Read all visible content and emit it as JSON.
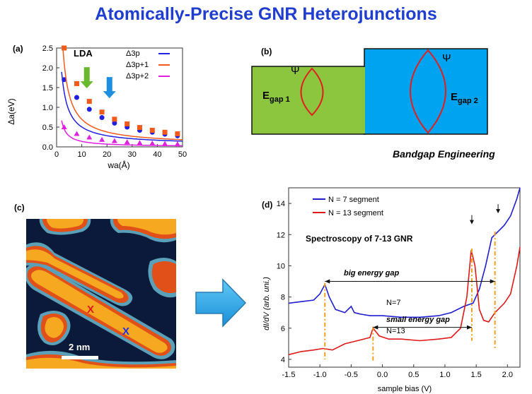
{
  "title": "Atomically-Precise GNR Heterojunctions",
  "panel_a": {
    "label": "(a)",
    "inset_label": "LDA",
    "ylabel": "Δa(eV)",
    "xlabel": "wa(Å)",
    "legend": [
      "Δ3p",
      "Δ3p+1",
      "Δ3p+2"
    ],
    "colors": {
      "3p": "#2020e0",
      "3p1": "#f05a1a",
      "3p2": "#e020e0",
      "green_arrow": "#6ab82e",
      "blue_arrow": "#1e8fe0"
    },
    "xlim": [
      0,
      50
    ],
    "ylim": [
      0,
      2.5
    ],
    "xticks": [
      "0",
      "10",
      "20",
      "30",
      "40",
      "50"
    ],
    "yticks": [
      "0.0",
      "0.5",
      "1.0",
      "1.5",
      "2.0",
      "2.5"
    ],
    "arrows_at_x": [
      12,
      21
    ]
  },
  "panel_b": {
    "label": "(b)",
    "psi": "Ψ",
    "egap1": "E",
    "egap1_sub": "gap 1",
    "egap2": "E",
    "egap2_sub": "gap 2",
    "caption": "Bandgap Engineering",
    "colors": {
      "left": "#8cc63f",
      "right": "#00a3ef",
      "wave": "#e02020"
    }
  },
  "panel_c": {
    "label": "(c)",
    "scale": "2 nm",
    "marker_red": "X",
    "marker_blue": "X"
  },
  "panel_d": {
    "label": "(d)",
    "legend_7": "N = 7 segment",
    "legend_13": "N = 13 segment",
    "title": "Spectroscopy of 7-13 GNR",
    "big_gap": "big energy gap",
    "n7": "N=7",
    "small_gap": "small energy gap",
    "n13": "N=13",
    "ylabel": "dI/dV (arb. uni.)",
    "xlabel": "sample bias (V)",
    "xlim": [
      -1.5,
      2.2
    ],
    "ylim": [
      3.5,
      15
    ],
    "xticks": [
      "-1.5",
      "-1.0",
      "-0.5",
      "0.0",
      "0.5",
      "1.0",
      "1.5",
      "2.0"
    ],
    "yticks": [
      "4",
      "6",
      "8",
      "10",
      "12",
      "14"
    ],
    "colors": {
      "n7": "#1f1fd0",
      "n13": "#e01818",
      "marker": "#f0a020"
    }
  },
  "chart_data": [
    {
      "type": "scatter",
      "title": "",
      "xlabel": "wa(Å)",
      "ylabel": "Δa(eV)",
      "xlim": [
        0,
        50
      ],
      "ylim": [
        0,
        2.5
      ],
      "series": [
        {
          "name": "Δ3p",
          "x": [
            3,
            8,
            13,
            18,
            23,
            28,
            33,
            38,
            43,
            48
          ],
          "y": [
            1.7,
            1.25,
            0.95,
            0.74,
            0.6,
            0.5,
            0.42,
            0.37,
            0.32,
            0.28
          ]
        },
        {
          "name": "Δ3p+1",
          "x": [
            3,
            8,
            13,
            18,
            23,
            28,
            33,
            38,
            43,
            48
          ],
          "y": [
            2.5,
            1.6,
            1.15,
            0.88,
            0.7,
            0.58,
            0.49,
            0.42,
            0.37,
            0.33
          ]
        },
        {
          "name": "Δ3p+2",
          "x": [
            3,
            8,
            13,
            18,
            23,
            28,
            33,
            38,
            43,
            48
          ],
          "y": [
            0.5,
            0.33,
            0.24,
            0.18,
            0.15,
            0.12,
            0.1,
            0.09,
            0.08,
            0.07
          ]
        }
      ]
    },
    {
      "type": "line",
      "title": "Spectroscopy of 7-13 GNR",
      "xlabel": "sample bias (V)",
      "ylabel": "dI/dV (arb. uni.)",
      "xlim": [
        -1.5,
        2.2
      ],
      "ylim": [
        3.5,
        15
      ],
      "series": [
        {
          "name": "N = 7 segment",
          "x": [
            -1.5,
            -1.3,
            -1.1,
            -1.0,
            -0.92,
            -0.85,
            -0.75,
            -0.6,
            -0.5,
            -0.45,
            -0.35,
            -0.2,
            0.0,
            0.3,
            0.6,
            0.9,
            1.1,
            1.3,
            1.45,
            1.55,
            1.65,
            1.75,
            1.85,
            1.95,
            2.05,
            2.15,
            2.2
          ],
          "y": [
            7.6,
            7.7,
            7.8,
            8.2,
            8.8,
            8.0,
            7.2,
            7.0,
            7.4,
            7.0,
            6.9,
            6.8,
            6.8,
            6.7,
            6.7,
            6.8,
            7.0,
            7.4,
            7.6,
            8.5,
            10.0,
            11.8,
            12.2,
            12.6,
            13.2,
            14.3,
            15.0
          ]
        },
        {
          "name": "N = 13 segment",
          "x": [
            -1.5,
            -1.3,
            -1.1,
            -0.95,
            -0.8,
            -0.6,
            -0.4,
            -0.2,
            -0.15,
            -0.05,
            0.1,
            0.3,
            0.6,
            0.9,
            1.1,
            1.25,
            1.35,
            1.42,
            1.48,
            1.55,
            1.62,
            1.7,
            1.8,
            1.95,
            2.05,
            2.15,
            2.2
          ],
          "y": [
            4.3,
            4.5,
            4.6,
            4.7,
            4.6,
            5.0,
            5.2,
            5.4,
            6.0,
            5.5,
            5.3,
            5.3,
            5.2,
            5.3,
            5.4,
            6.0,
            8.0,
            11.0,
            10.0,
            7.2,
            6.5,
            6.4,
            7.0,
            7.6,
            8.2,
            10.0,
            11.2
          ]
        }
      ]
    }
  ]
}
